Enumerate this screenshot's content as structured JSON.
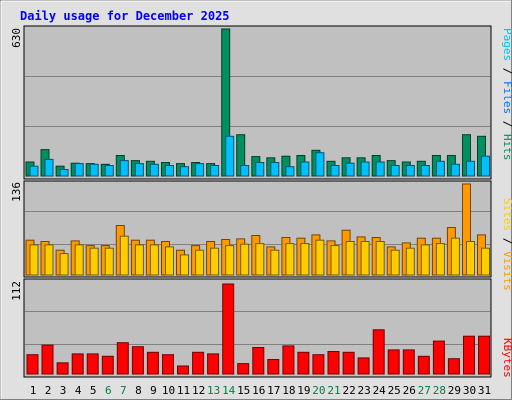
{
  "chart_data": [
    {
      "type": "bar",
      "title": "Daily usage for December 2025",
      "categories": [
        "1",
        "2",
        "3",
        "4",
        "5",
        "6",
        "7",
        "8",
        "9",
        "10",
        "11",
        "12",
        "13",
        "14",
        "15",
        "16",
        "17",
        "18",
        "19",
        "20",
        "21",
        "22",
        "23",
        "24",
        "25",
        "26",
        "27",
        "28",
        "29",
        "30",
        "31"
      ],
      "weekend_days": [
        "6",
        "7",
        "13",
        "14",
        "20",
        "21",
        "27",
        "28"
      ],
      "y_max_label": "630",
      "ylim": [
        0,
        630
      ],
      "ylabel_parts": [
        "Pages",
        "Files",
        "Hits"
      ],
      "series": [
        {
          "name": "Hits",
          "color": "#008f5e",
          "values": [
            60,
            113,
            42,
            55,
            53,
            50,
            88,
            66,
            63,
            58,
            53,
            58,
            53,
            630,
            177,
            83,
            78,
            85,
            88,
            110,
            63,
            78,
            78,
            88,
            66,
            60,
            63,
            88,
            88,
            177,
            170
          ]
        },
        {
          "name": "Files",
          "color": "#00c0ff",
          "values": [
            42,
            71,
            28,
            53,
            50,
            45,
            66,
            53,
            50,
            45,
            40,
            53,
            45,
            170,
            45,
            58,
            58,
            40,
            60,
            100,
            45,
            55,
            60,
            60,
            45,
            45,
            45,
            63,
            50,
            63,
            85
          ]
        }
      ]
    },
    {
      "type": "bar",
      "y_max_label": "136",
      "ylim": [
        0,
        136
      ],
      "ylabel_parts": [
        "Sites",
        "Visits"
      ],
      "series": [
        {
          "name": "Visits",
          "color": "#ff9900",
          "values": [
            52,
            50,
            37,
            51,
            44,
            44,
            74,
            52,
            52,
            50,
            37,
            44,
            50,
            53,
            54,
            59,
            42,
            56,
            55,
            60,
            51,
            67,
            57,
            56,
            42,
            48,
            55,
            55,
            71,
            136,
            60
          ]
        },
        {
          "name": "Sites",
          "color": "#ffcc00",
          "values": [
            45,
            45,
            32,
            45,
            40,
            40,
            58,
            45,
            45,
            42,
            30,
            37,
            40,
            44,
            46,
            47,
            37,
            47,
            47,
            52,
            44,
            50,
            50,
            50,
            37,
            40,
            45,
            47,
            55,
            50,
            40
          ]
        }
      ]
    },
    {
      "type": "bar",
      "y_max_label": "112",
      "ylim": [
        0,
        112
      ],
      "ylabel_parts": [
        "KBytes"
      ],
      "series": [
        {
          "name": "KBytes",
          "color": "#ff0000",
          "values": [
            24,
            36,
            14,
            25,
            25,
            22,
            39,
            34,
            27,
            24,
            10,
            27,
            25,
            112,
            13,
            33,
            18,
            35,
            27,
            24,
            28,
            27,
            20,
            55,
            30,
            30,
            22,
            41,
            19,
            47,
            47
          ]
        }
      ]
    }
  ],
  "colors": {
    "title": "#0000ff",
    "plot_bg": "#c0c0c0",
    "frame_bg": "#e0e0e0",
    "weekday_label": "#000000",
    "weekend_label": "#008040",
    "pages_label": "#00c0ff",
    "files_label": "#0070ff",
    "hits_label": "#008f5e",
    "sites_label": "#ffcc00",
    "visits_label": "#ff9900",
    "kbytes_label": "#ff0000"
  }
}
